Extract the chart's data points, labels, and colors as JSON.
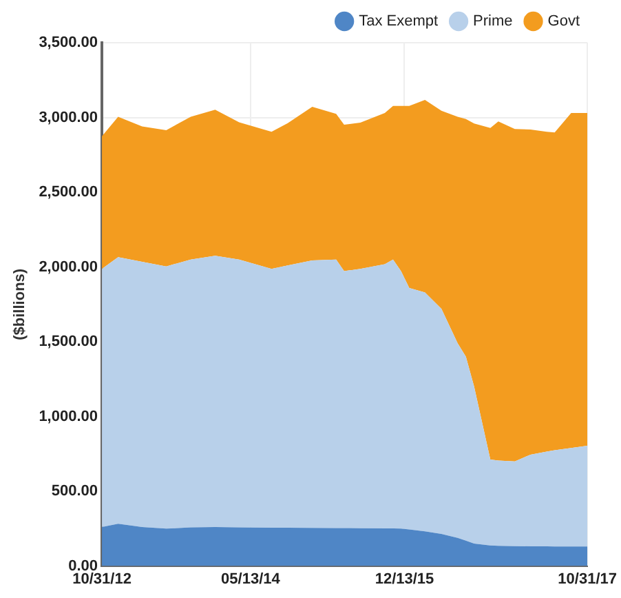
{
  "chart_data": {
    "type": "area",
    "stacked": true,
    "ylabel": "($billions)",
    "x": [
      "2012-10-31",
      "2012-12-31",
      "2013-03-31",
      "2013-06-30",
      "2013-09-30",
      "2013-12-31",
      "2014-03-31",
      "2014-07-31",
      "2014-09-30",
      "2014-12-31",
      "2015-03-31",
      "2015-04-30",
      "2015-06-30",
      "2015-09-30",
      "2015-10-31",
      "2015-11-30",
      "2015-12-31",
      "2016-02-28",
      "2016-04-30",
      "2016-06-30",
      "2016-07-31",
      "2016-08-31",
      "2016-10-31",
      "2016-11-30",
      "2017-01-31",
      "2017-03-31",
      "2017-05-31",
      "2017-06-30",
      "2017-08-31",
      "2017-10-31"
    ],
    "series": [
      {
        "name": "Tax Exempt",
        "color": "#4f86c6",
        "values": [
          261,
          283,
          261,
          250,
          258,
          261,
          258,
          256,
          256,
          255,
          254,
          254,
          253,
          252,
          252,
          250,
          245,
          232,
          215,
          188,
          170,
          150,
          137,
          135,
          133,
          132,
          132,
          131,
          131,
          131
        ]
      },
      {
        "name": "Prime",
        "color": "#b8d0ea",
        "values": [
          1727,
          1783,
          1774,
          1754,
          1792,
          1814,
          1792,
          1732,
          1754,
          1789,
          1796,
          1718,
          1735,
          1767,
          1798,
          1722,
          1615,
          1598,
          1505,
          1302,
          1230,
          1050,
          575,
          570,
          567,
          613,
          633,
          644,
          659,
          674
        ]
      },
      {
        "name": "Govt",
        "color": "#f39c1f",
        "values": [
          887,
          939,
          905,
          911,
          955,
          977,
          918,
          917,
          952,
          1027,
          974,
          980,
          977,
          1011,
          1027,
          1105,
          1217,
          1287,
          1325,
          1515,
          1590,
          1760,
          2218,
          2269,
          2223,
          2175,
          2140,
          2125,
          2240,
          2225
        ]
      }
    ],
    "xlim": [
      "2012-10-31",
      "2017-10-31"
    ],
    "xticks": [
      {
        "value": "2012-10-31",
        "label": "10/31/12"
      },
      {
        "value": "2014-05-13",
        "label": "05/13/14"
      },
      {
        "value": "2015-12-13",
        "label": "12/13/15"
      },
      {
        "value": "2017-10-31",
        "label": "10/31/17"
      }
    ],
    "ylim": [
      0,
      3500
    ],
    "yticks": [
      {
        "value": 0,
        "label": "0.00"
      },
      {
        "value": 500,
        "label": "500.00"
      },
      {
        "value": 1000,
        "label": "1,000.00"
      },
      {
        "value": 1500,
        "label": "1,500.00"
      },
      {
        "value": 2000,
        "label": "2,000.00"
      },
      {
        "value": 2500,
        "label": "2,500.00"
      },
      {
        "value": 3000,
        "label": "3,000.00"
      },
      {
        "value": 3500,
        "label": "3,500.00"
      }
    ],
    "grid": true,
    "legend": "top right"
  }
}
